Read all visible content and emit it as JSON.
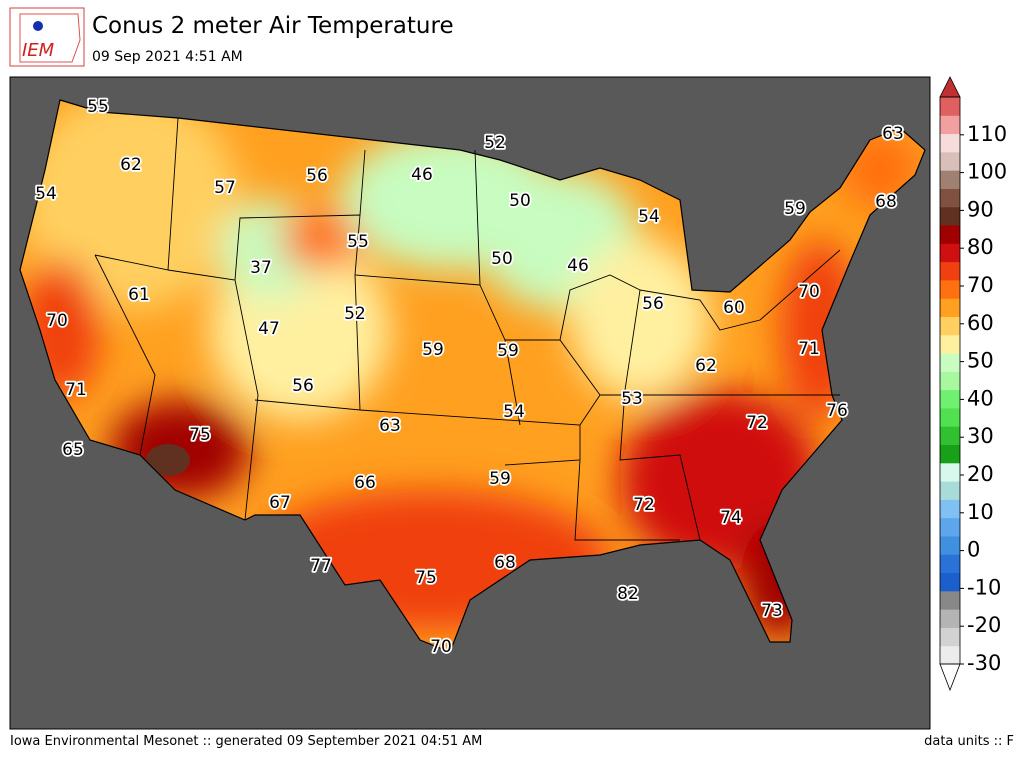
{
  "header": {
    "logo": "IEM",
    "title": "Conus 2 meter Air Temperature",
    "subtitle": "09 Sep 2021 4:51 AM"
  },
  "colorbar": {
    "range": [
      -30,
      120
    ],
    "ticks": [
      -30,
      -20,
      -10,
      0,
      10,
      20,
      30,
      40,
      50,
      60,
      70,
      80,
      90,
      100,
      110
    ],
    "colors": [
      "#ececec",
      "#d2d2d2",
      "#b4b4b4",
      "#888888",
      "#1a5fcc",
      "#2a72d8",
      "#4090e0",
      "#5ea6ec",
      "#80c0f2",
      "#a8dcd8",
      "#d8f8ee",
      "#18a018",
      "#30c030",
      "#50e050",
      "#70f070",
      "#a8f8a0",
      "#c8fcc0",
      "#fff0a0",
      "#ffd060",
      "#ffa020",
      "#ff7010",
      "#f04010",
      "#d01010",
      "#a00000",
      "#603020",
      "#805040",
      "#a08070",
      "#d8c0b8",
      "#f8dcdc",
      "#f0a0a0",
      "#e06060"
    ],
    "over": "#c03030",
    "under": "#ffffff"
  },
  "stations": [
    55,
    52,
    63,
    62,
    46,
    56,
    57,
    54,
    50,
    68,
    59,
    54,
    55,
    37,
    50,
    46,
    61,
    56,
    60,
    70,
    52,
    70,
    47,
    59,
    59,
    71,
    62,
    56,
    71,
    53,
    54,
    76,
    75,
    63,
    72,
    65,
    59,
    66,
    72,
    67,
    74,
    77,
    75,
    68,
    82,
    73,
    70
  ],
  "footer": {
    "left": "Iowa Environmental Mesonet :: generated 09 September 2021 04:51 AM",
    "right": "data units :: F"
  }
}
